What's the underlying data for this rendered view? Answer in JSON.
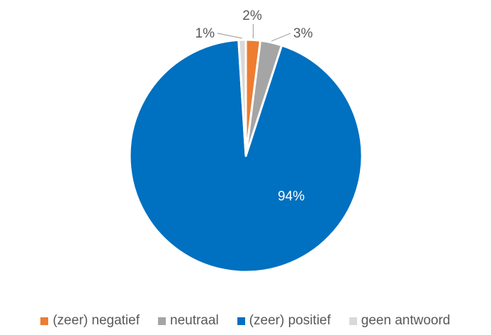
{
  "chart_data": {
    "type": "pie",
    "slices": [
      {
        "label": "(zeer) negatief",
        "value": 2,
        "display": "2%",
        "color": "#ED7D31"
      },
      {
        "label": "neutraal",
        "value": 3,
        "display": "3%",
        "color": "#A5A5A5"
      },
      {
        "label": "(zeer) positief",
        "value": 94,
        "display": "94%",
        "color": "#0070C0"
      },
      {
        "label": "geen antwoord",
        "value": 1,
        "display": "1%",
        "color": "#D9D9D9"
      }
    ],
    "legend_position": "bottom",
    "data_labels": true
  }
}
